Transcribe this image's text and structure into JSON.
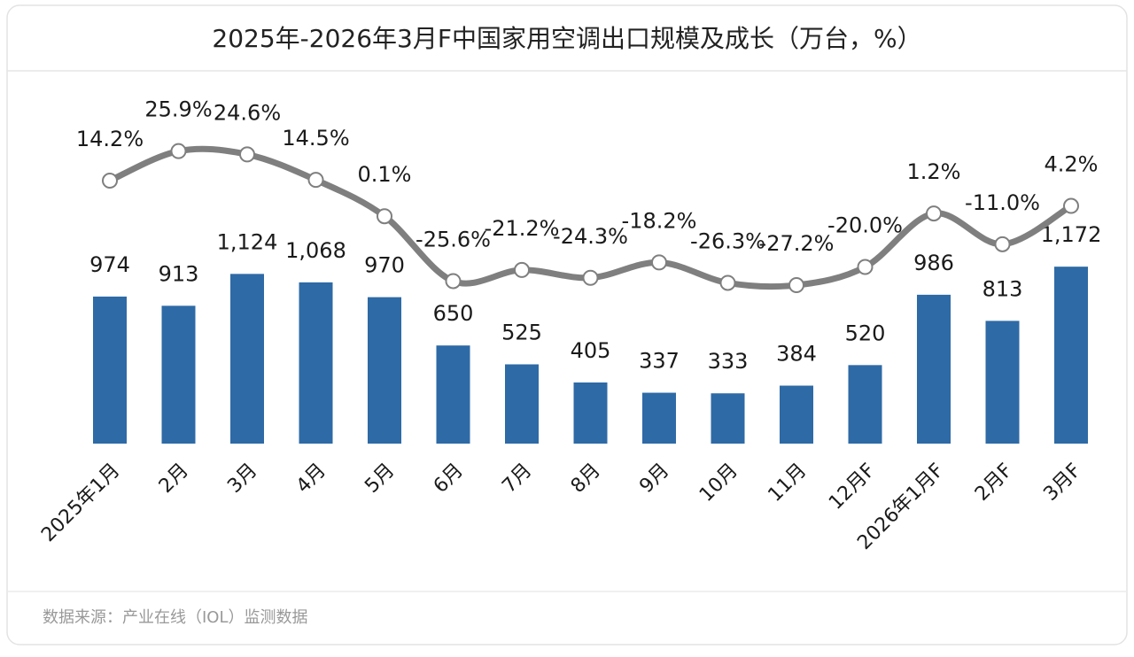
{
  "chart_data": {
    "type": "combo",
    "title": "2025年-2026年3月F中国家用空调出口规模及成长（万台，%）",
    "source": "数据来源：产业在线（IOL）监测数据",
    "categories": [
      "2025年1月",
      "2月",
      "3月",
      "4月",
      "5月",
      "6月",
      "7月",
      "8月",
      "9月",
      "10月",
      "11月",
      "12月F",
      "2026年1月F",
      "2月F",
      "3月F"
    ],
    "series": [
      {
        "type": "bar",
        "color": "#2e6aa6",
        "values": [
          974,
          913,
          1124,
          1068,
          970,
          650,
          525,
          405,
          337,
          333,
          384,
          520,
          986,
          813,
          1172
        ],
        "value_labels": [
          "974",
          "913",
          "1,124",
          "1,068",
          "970",
          "650",
          "525",
          "405",
          "337",
          "333",
          "384",
          "520",
          "986",
          "813",
          "1,172"
        ]
      },
      {
        "type": "line",
        "color": "#7f7f7f",
        "axis": "y2",
        "values": [
          14.2,
          25.9,
          24.6,
          14.5,
          0.1,
          -25.6,
          -21.2,
          -24.3,
          -18.2,
          -26.3,
          -27.2,
          -20.0,
          1.2,
          -11.0,
          4.2
        ],
        "value_labels": [
          "14.2%",
          "25.9%",
          "24.6%",
          "14.5%",
          "0.1%",
          "-25.6%",
          "-21.2%",
          "-24.3%",
          "-18.2%",
          "-26.3%",
          "-27.2%",
          "-20.0%",
          "1.2%",
          "-11.0%",
          "4.2%"
        ]
      }
    ]
  }
}
